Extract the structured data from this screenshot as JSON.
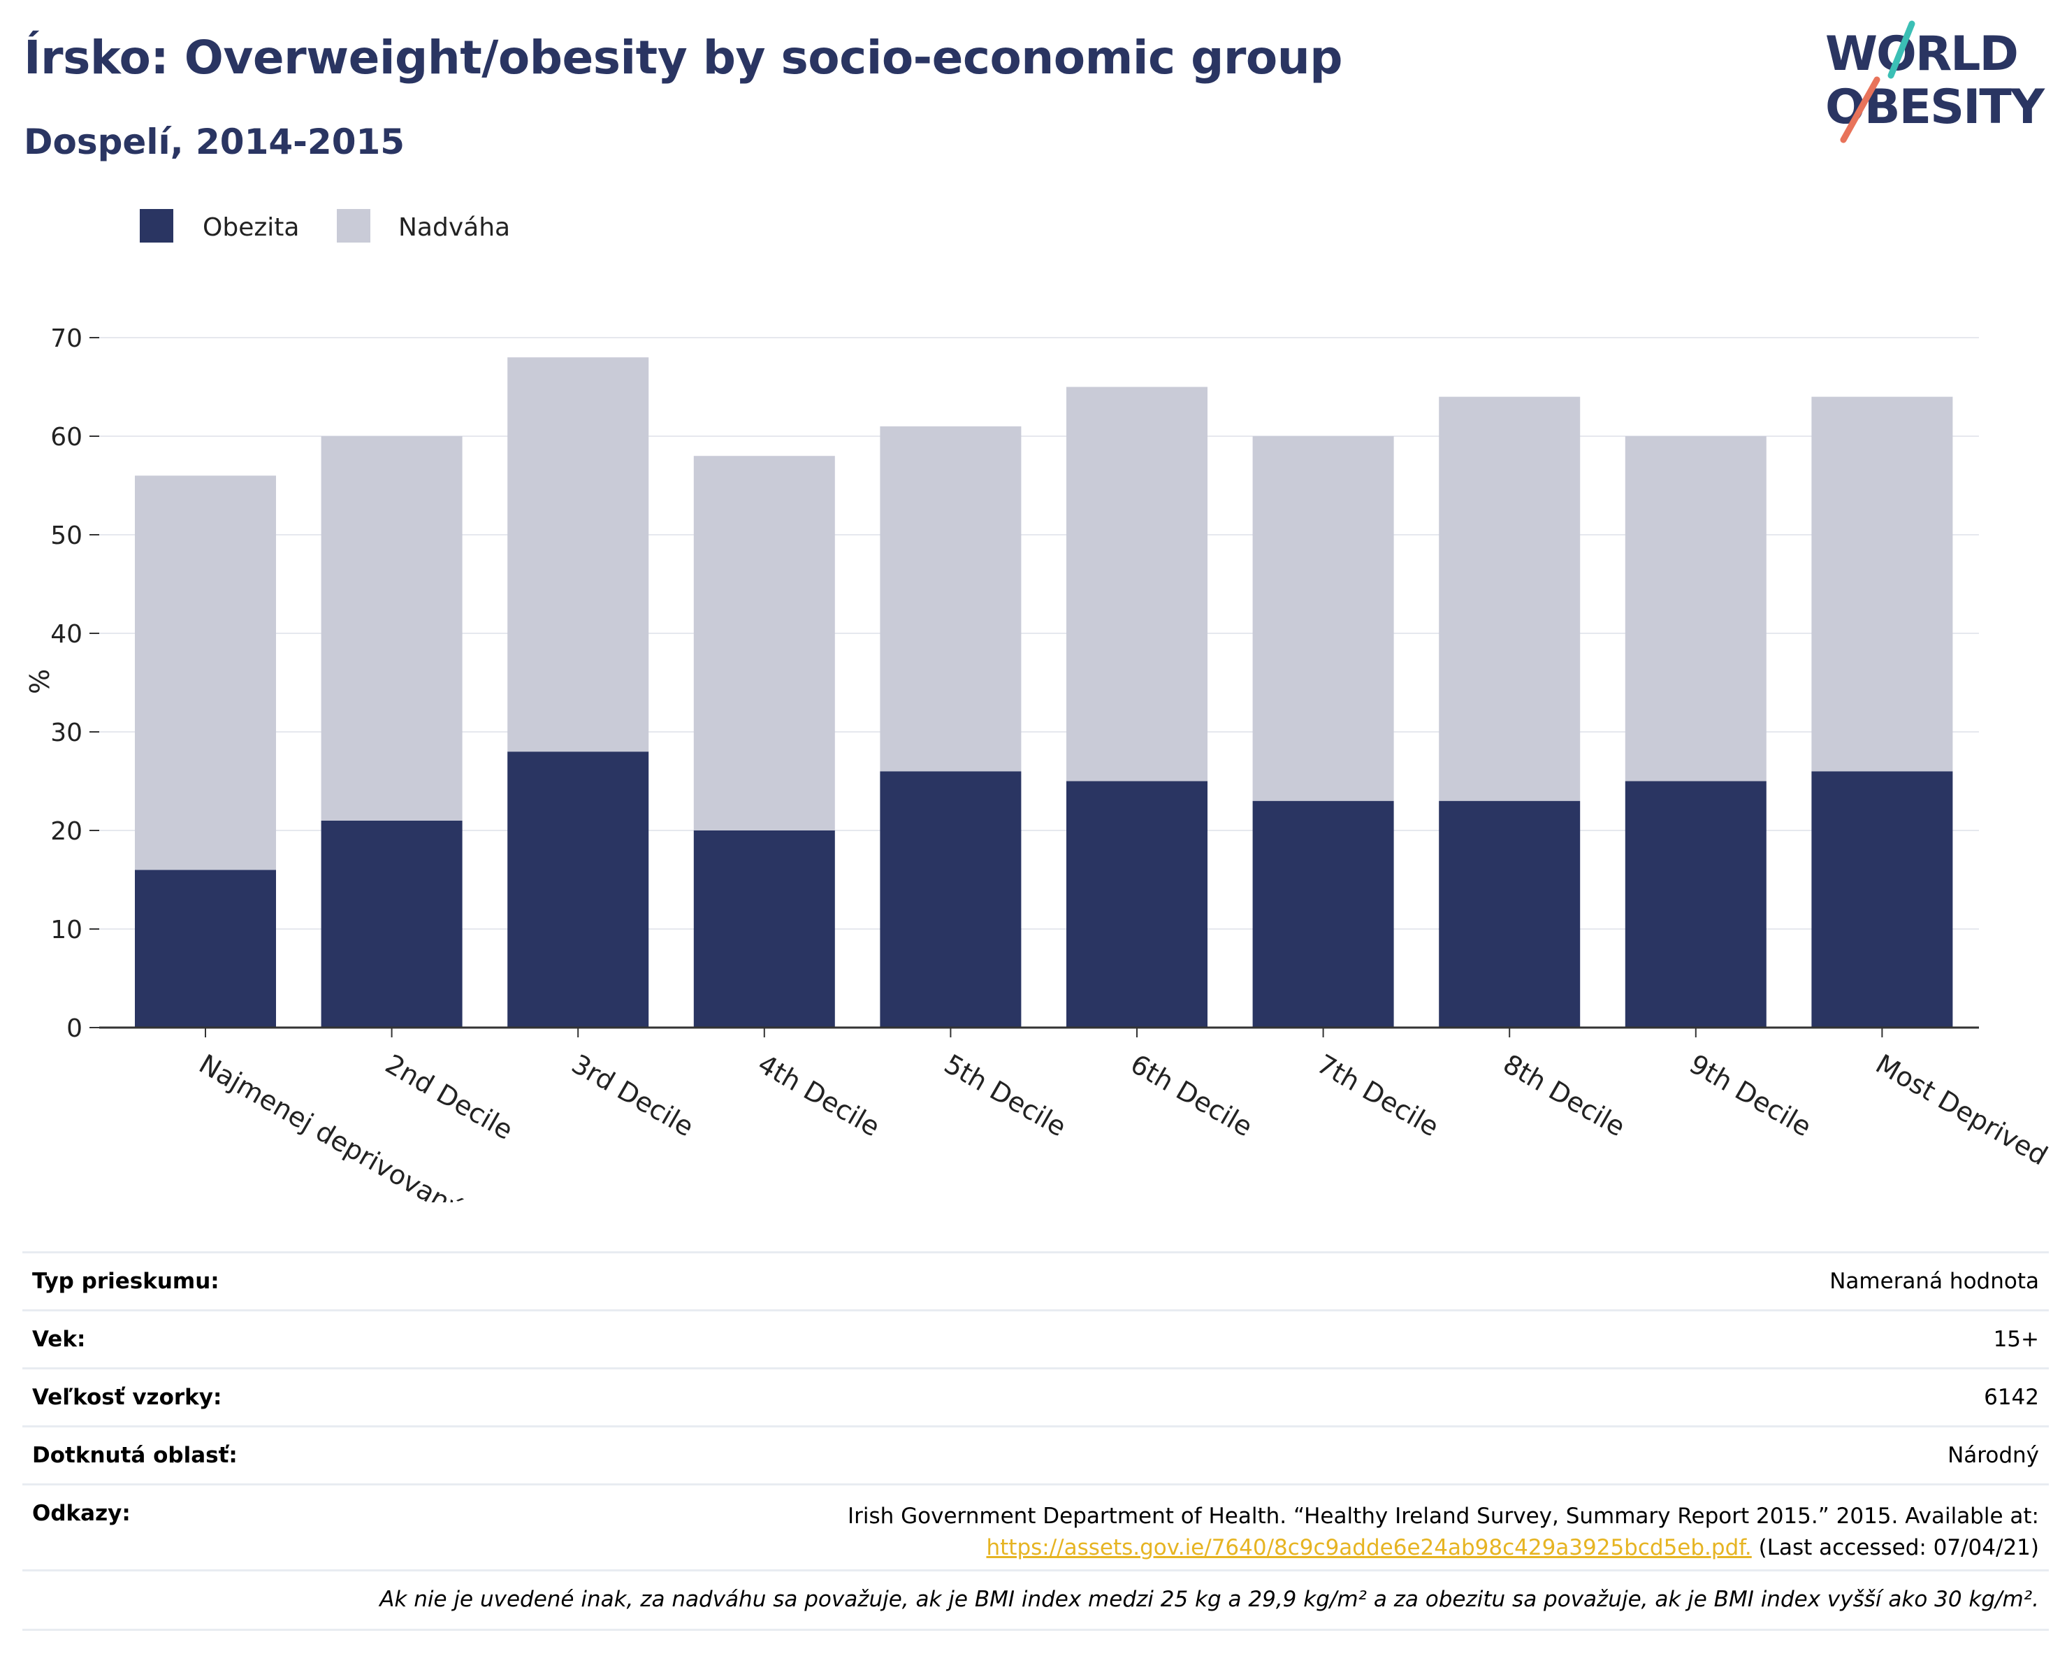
{
  "title": "Írsko: Overweight/obesity by socio-economic group",
  "subtitle": "Dospelí, 2014-2015",
  "logo": {
    "line1": "WORLD",
    "line2": "OBESITY",
    "accent_teal": "#3bbfb5",
    "accent_coral": "#e8735a"
  },
  "colors": {
    "obesity": "#2a3562",
    "overweight": "#c9cbd7",
    "title": "#2a3562",
    "grid": "#e6e8ee",
    "axis": "#333333"
  },
  "chart_data": {
    "type": "bar",
    "stacked": true,
    "categories": [
      "Najmenej deprivovaný",
      "2nd Decile",
      "3rd Decile",
      "4th Decile",
      "5th Decile",
      "6th Decile",
      "7th Decile",
      "8th Decile",
      "9th Decile",
      "Most Deprived"
    ],
    "series": [
      {
        "name": "Obezita",
        "values": [
          16,
          21,
          28,
          20,
          26,
          25,
          23,
          23,
          25,
          26
        ]
      },
      {
        "name": "Nadváha",
        "values": [
          40,
          39,
          40,
          38,
          35,
          40,
          37,
          41,
          35,
          38
        ]
      }
    ],
    "ylabel": "%",
    "xlabel": "",
    "ylim": [
      0,
      70
    ],
    "yticks": [
      0,
      10,
      20,
      30,
      40,
      50,
      60,
      70
    ],
    "grid": true,
    "legend_position": "top-left"
  },
  "info": {
    "survey_type_label": "Typ prieskumu:",
    "survey_type_value": "Nameraná hodnota",
    "age_label": "Vek:",
    "age_value": "15+",
    "sample_label": "Veľkosť vzorky:",
    "sample_value": "6142",
    "area_label": "Dotknutá oblasť:",
    "area_value": "Národný",
    "refs_label": "Odkazy:",
    "refs_text": "Irish Government Department of Health. “Healthy Ireland Survey, Summary Report 2015.” 2015. Available at:",
    "refs_link": "https://assets.gov.ie/7640/8c9c9adde6e24ab98c429a3925bcd5eb.pdf.",
    "refs_tail": " (Last accessed: 07/04/21)",
    "note": "Ak nie je uvedené inak, za nadváhu sa považuje, ak je BMI index medzi 25 kg a 29,9 kg/m² a za obezitu sa považuje, ak je BMI index vyšší ako 30 kg/m²."
  }
}
